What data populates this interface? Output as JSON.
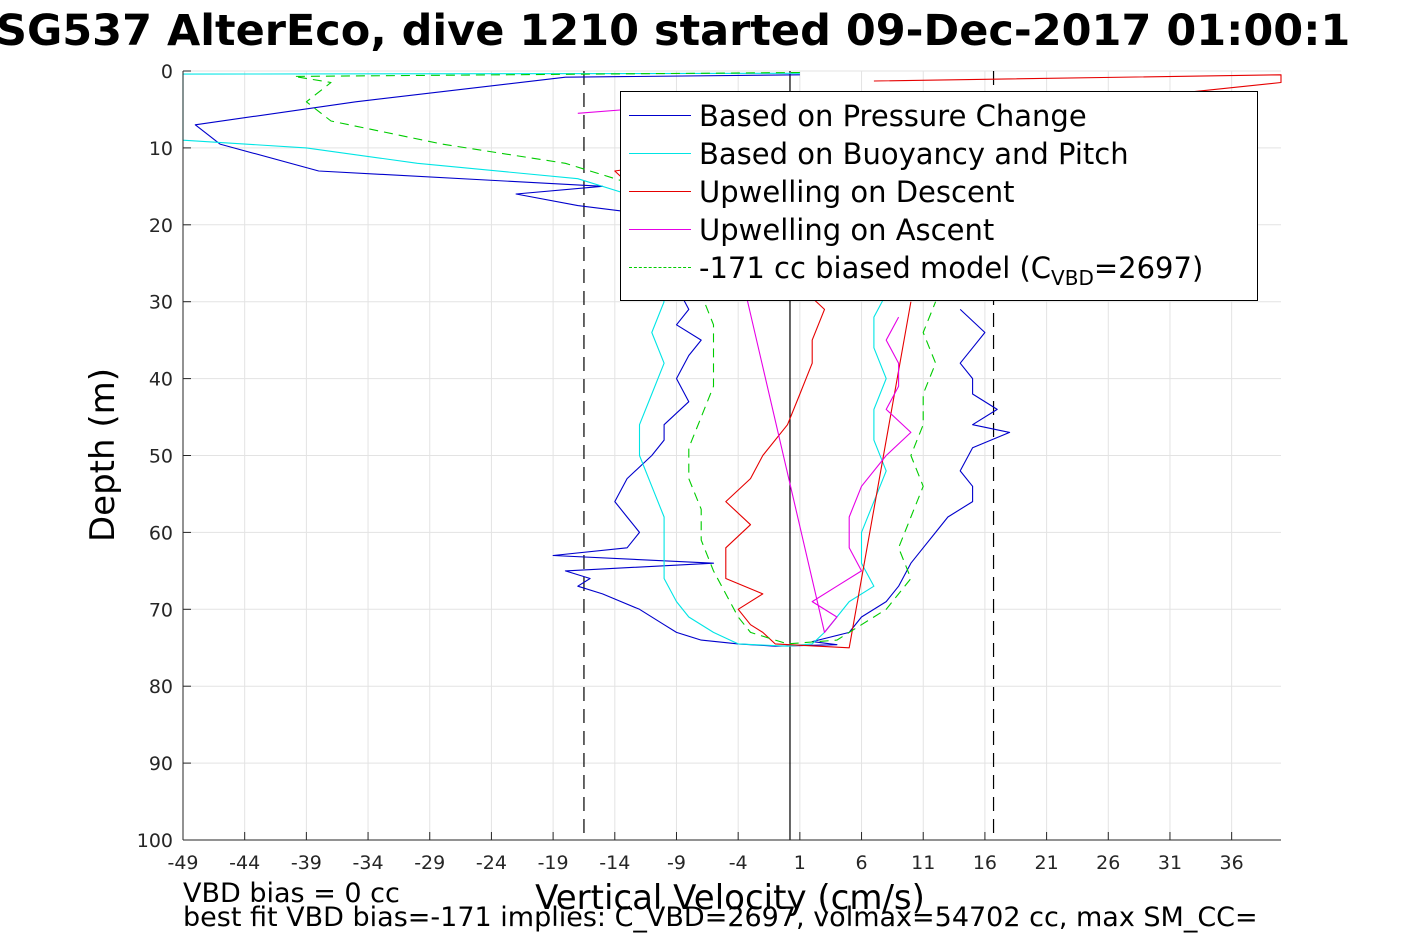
{
  "figure": {
    "title": "SG537 AlterEco, dive 1210 started 09-Dec-2017 01:00:1",
    "footer": {
      "line1": "VBD bias = 0 cc",
      "line2": "best fit VBD bias=-171 implies: C_VBD=2697, volmax=54702 cc, max SM_CC="
    }
  },
  "chart_data": {
    "type": "line",
    "xlabel": "Vertical Velocity (cm/s)",
    "ylabel": "Depth (m)",
    "xlim": [
      -49,
      40
    ],
    "ylim": [
      0,
      100
    ],
    "y_reversed": true,
    "grid": true,
    "x_ticks": [
      -49,
      -44,
      -39,
      -34,
      -29,
      -24,
      -19,
      -14,
      -9,
      -4,
      1,
      6,
      11,
      16,
      21,
      26,
      31,
      36
    ],
    "y_ticks": [
      0,
      10,
      20,
      30,
      40,
      50,
      60,
      70,
      80,
      90,
      100
    ],
    "legend_position": "top-right",
    "reference_lines": [
      {
        "x": -16.5,
        "style": "dashed",
        "color": "#000000"
      },
      {
        "x": 0.2,
        "style": "solid",
        "color": "#000000"
      },
      {
        "x": 16.7,
        "style": "dashed",
        "color": "#000000"
      }
    ],
    "series": [
      {
        "name": "Based on Pressure Change",
        "color": "#0000cc",
        "dash": "",
        "points": [
          [
            1,
            0.5
          ],
          [
            -18,
            0.8
          ],
          [
            -35,
            4
          ],
          [
            -48,
            7
          ],
          [
            -46,
            9.5
          ],
          [
            -38,
            13
          ],
          [
            -15,
            15
          ],
          [
            -22,
            16
          ],
          [
            -17,
            17.5
          ],
          [
            -12,
            18.5
          ],
          [
            -9,
            20
          ],
          [
            -10,
            24
          ],
          [
            -9,
            28
          ],
          [
            -8,
            31
          ],
          [
            -9,
            33
          ],
          [
            -7,
            35
          ],
          [
            -8,
            37
          ],
          [
            -9,
            40
          ],
          [
            -8,
            43
          ],
          [
            -10,
            46
          ],
          [
            -10,
            48
          ],
          [
            -11,
            50
          ],
          [
            -13,
            53
          ],
          [
            -14,
            56
          ],
          [
            -13,
            58
          ],
          [
            -12,
            60
          ],
          [
            -13,
            62
          ],
          [
            -19,
            63
          ],
          [
            -6,
            64
          ],
          [
            -18,
            65
          ],
          [
            -16,
            66
          ],
          [
            -17,
            67
          ],
          [
            -15,
            68
          ],
          [
            -12,
            70
          ],
          [
            -10,
            72
          ],
          [
            -9,
            73
          ],
          [
            -7,
            74
          ],
          [
            -4,
            74.5
          ],
          [
            -1,
            74.8
          ],
          [
            4,
            74.6
          ],
          [
            2,
            74.2
          ],
          [
            5,
            73
          ],
          [
            6,
            71
          ],
          [
            8,
            69
          ],
          [
            9,
            67
          ],
          [
            10,
            64
          ],
          [
            11,
            62
          ],
          [
            12,
            60
          ],
          [
            13,
            58
          ],
          [
            15,
            56
          ],
          [
            15,
            54
          ],
          [
            14,
            52
          ],
          [
            15,
            49
          ],
          [
            18,
            47
          ],
          [
            15,
            46
          ],
          [
            17,
            44
          ],
          [
            15,
            42
          ],
          [
            15,
            40
          ],
          [
            14,
            38
          ],
          [
            15,
            36
          ],
          [
            16,
            34
          ],
          [
            14,
            31
          ]
        ]
      },
      {
        "name": "Based on Buoyancy and Pitch",
        "color": "#00e5e5",
        "dash": "",
        "points": [
          [
            1,
            0.3
          ],
          [
            -49,
            0.4
          ],
          [
            -49,
            9
          ],
          [
            -39,
            10
          ],
          [
            -30,
            12
          ],
          [
            -17,
            14
          ],
          [
            -13,
            16
          ],
          [
            -10,
            19
          ],
          [
            -10,
            23
          ],
          [
            -11,
            27
          ],
          [
            -10,
            30
          ],
          [
            -11,
            34
          ],
          [
            -10,
            38
          ],
          [
            -11,
            42
          ],
          [
            -12,
            46
          ],
          [
            -12,
            50
          ],
          [
            -11,
            54
          ],
          [
            -10,
            58
          ],
          [
            -10,
            62
          ],
          [
            -10,
            66
          ],
          [
            -9,
            69
          ],
          [
            -8,
            71
          ],
          [
            -6,
            73
          ],
          [
            -4,
            74.5
          ],
          [
            0,
            74.8
          ],
          [
            2,
            74.5
          ],
          [
            3,
            73
          ],
          [
            4,
            71
          ],
          [
            5,
            69
          ],
          [
            7,
            67
          ],
          [
            6,
            64
          ],
          [
            6,
            60
          ],
          [
            7,
            56
          ],
          [
            8,
            52
          ],
          [
            7,
            48
          ],
          [
            7,
            44
          ],
          [
            8,
            40
          ],
          [
            7,
            36
          ],
          [
            7,
            32
          ],
          [
            8,
            29
          ]
        ]
      },
      {
        "name": "Upwelling on Descent",
        "color": "#e60000",
        "dash": "",
        "points": [
          [
            7,
            1.3
          ],
          [
            40,
            0.5
          ],
          [
            40,
            1.5
          ],
          [
            25,
            4
          ],
          [
            12,
            7
          ],
          [
            -14,
            13
          ],
          [
            -12,
            16
          ],
          [
            -8,
            18
          ],
          [
            -2,
            20
          ],
          [
            -1,
            24
          ],
          [
            1,
            28
          ],
          [
            3,
            31
          ],
          [
            2,
            35
          ],
          [
            2,
            38
          ],
          [
            1,
            42
          ],
          [
            0,
            46
          ],
          [
            -2,
            50
          ],
          [
            -3,
            53
          ],
          [
            -5,
            56
          ],
          [
            -3,
            59
          ],
          [
            -5,
            62
          ],
          [
            -5,
            64
          ],
          [
            -5,
            66
          ],
          [
            -2,
            68
          ],
          [
            -4,
            70
          ],
          [
            -3,
            72
          ],
          [
            -2,
            73
          ],
          [
            -1,
            74.5
          ],
          [
            5,
            75
          ],
          [
            10,
            30
          ]
        ]
      },
      {
        "name": "Upwelling on Ascent",
        "color": "#e600e6",
        "dash": "",
        "points": [
          [
            -17,
            5.5
          ],
          [
            -9,
            4.5
          ],
          [
            -7,
            4
          ],
          [
            3,
            73
          ],
          [
            4,
            71
          ],
          [
            2,
            69
          ],
          [
            4,
            67
          ],
          [
            6,
            65
          ],
          [
            5,
            62
          ],
          [
            5,
            58
          ],
          [
            6,
            54
          ],
          [
            8,
            50
          ],
          [
            10,
            47
          ],
          [
            8,
            44
          ],
          [
            9,
            41
          ],
          [
            9,
            38
          ],
          [
            8,
            35
          ],
          [
            9,
            32
          ]
        ]
      },
      {
        "name": "-171 cc biased model (C_VBD=2697)",
        "color": "#00cc00",
        "dash": "9,6",
        "points": [
          [
            1,
            0.2
          ],
          [
            -40,
            0.7
          ],
          [
            -37,
            1.5
          ],
          [
            -39,
            4
          ],
          [
            -37,
            6.5
          ],
          [
            -28,
            9.5
          ],
          [
            -18,
            12
          ],
          [
            -12,
            15
          ],
          [
            -10,
            18
          ],
          [
            -8,
            21
          ],
          [
            -7,
            25
          ],
          [
            -7,
            29
          ],
          [
            -6,
            33
          ],
          [
            -6,
            37
          ],
          [
            -6,
            41
          ],
          [
            -7,
            45
          ],
          [
            -8,
            49
          ],
          [
            -8,
            53
          ],
          [
            -7,
            57
          ],
          [
            -7,
            61
          ],
          [
            -6,
            65
          ],
          [
            -5,
            68
          ],
          [
            -4,
            71
          ],
          [
            -3,
            73
          ],
          [
            0,
            74.5
          ],
          [
            4,
            74
          ],
          [
            6,
            72
          ],
          [
            8,
            70
          ],
          [
            9,
            68
          ],
          [
            10,
            66
          ],
          [
            9,
            62
          ],
          [
            10,
            58
          ],
          [
            11,
            54
          ],
          [
            10,
            50
          ],
          [
            11,
            46
          ],
          [
            11,
            42
          ],
          [
            12,
            38
          ],
          [
            11,
            34
          ],
          [
            12,
            30
          ]
        ]
      }
    ],
    "legend_entries": [
      {
        "label": "Based on Pressure Change",
        "color": "#0000cc",
        "style": "solid"
      },
      {
        "label": "Based on Buoyancy and Pitch",
        "color": "#00e5e5",
        "style": "solid"
      },
      {
        "label": "Upwelling on Descent",
        "color": "#e60000",
        "style": "solid"
      },
      {
        "label": "Upwelling on Ascent",
        "color": "#e600e6",
        "style": "solid"
      },
      {
        "label_main": "-171 cc biased model (C",
        "label_sub": "VBD",
        "label_tail": "=2697)",
        "color": "#00cc00",
        "style": "dashed"
      }
    ]
  }
}
